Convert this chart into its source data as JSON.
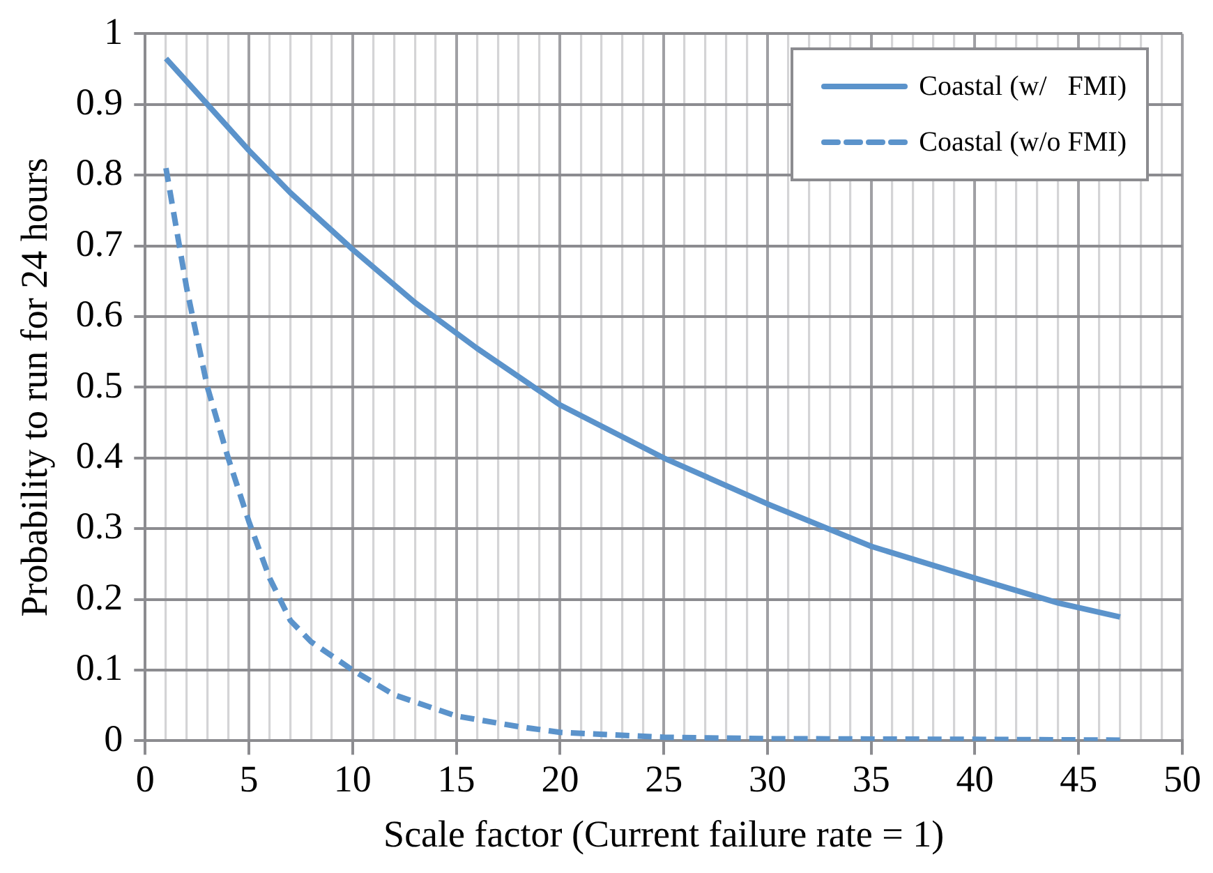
{
  "chart_data": {
    "type": "line",
    "xlabel": "Scale factor (Current failure rate = 1)",
    "ylabel": "Probability to run for 24 hours",
    "xlim": [
      0,
      50
    ],
    "ylim": [
      0,
      1
    ],
    "xticks": [
      0,
      {
        "value": 1,
        "label": null
      },
      {
        "value": 2,
        "label": null
      },
      {
        "value": 3,
        "label": null
      },
      {
        "value": 4,
        "label": null
      },
      5,
      {
        "value": 6,
        "label": null
      },
      {
        "value": 7,
        "label": null
      },
      {
        "value": 8,
        "label": null
      },
      {
        "value": 9,
        "label": null
      },
      10,
      {
        "value": 11,
        "label": null
      },
      {
        "value": 12,
        "label": null
      },
      {
        "value": 13,
        "label": null
      },
      {
        "value": 14,
        "label": null
      },
      15,
      {
        "value": 16,
        "label": null
      },
      {
        "value": 17,
        "label": null
      },
      {
        "value": 18,
        "label": null
      },
      {
        "value": 19,
        "label": null
      },
      20,
      {
        "value": 21,
        "label": null
      },
      {
        "value": 22,
        "label": null
      },
      {
        "value": 23,
        "label": null
      },
      {
        "value": 24,
        "label": null
      },
      25,
      {
        "value": 26,
        "label": null
      },
      {
        "value": 27,
        "label": null
      },
      {
        "value": 28,
        "label": null
      },
      {
        "value": 29,
        "label": null
      },
      30,
      {
        "value": 31,
        "label": null
      },
      {
        "value": 32,
        "label": null
      },
      {
        "value": 33,
        "label": null
      },
      {
        "value": 34,
        "label": null
      },
      35,
      {
        "value": 36,
        "label": null
      },
      {
        "value": 37,
        "label": null
      },
      {
        "value": 38,
        "label": null
      },
      {
        "value": 39,
        "label": null
      },
      40,
      {
        "value": 41,
        "label": null
      },
      {
        "value": 42,
        "label": null
      },
      {
        "value": 43,
        "label": null
      },
      {
        "value": 44,
        "label": null
      },
      45,
      {
        "value": 46,
        "label": null
      },
      {
        "value": 47,
        "label": null
      },
      {
        "value": 48,
        "label": null
      },
      {
        "value": 49,
        "label": null
      },
      50
    ],
    "yticks": [
      0,
      0.1,
      0.2,
      0.3,
      0.4,
      0.5,
      0.6,
      0.7,
      0.8,
      0.9,
      1
    ],
    "grid": true,
    "legend": "top right",
    "marker": "none",
    "series": [
      {
        "name": "Coastal (w/   FMI)",
        "color": "#5b93cb",
        "line_style": "solid",
        "x": [
          1,
          3,
          5,
          7,
          10,
          13,
          16,
          20,
          25,
          30,
          35,
          40,
          44,
          47
        ],
        "values": [
          0.965,
          0.9,
          0.835,
          0.775,
          0.695,
          0.62,
          0.555,
          0.475,
          0.4,
          0.335,
          0.275,
          0.23,
          0.195,
          0.175
        ]
      },
      {
        "name": "Coastal (w/o FMI)",
        "color": "#5b93cb",
        "line_style": "dashed",
        "x": [
          1,
          2,
          3,
          4,
          5,
          6,
          7,
          8,
          10,
          12,
          15,
          18,
          20,
          25,
          30,
          40,
          47
        ],
        "values": [
          0.81,
          0.64,
          0.5,
          0.4,
          0.31,
          0.23,
          0.17,
          0.14,
          0.1,
          0.065,
          0.035,
          0.02,
          0.012,
          0.005,
          0.003,
          0.002,
          0.001
        ]
      }
    ]
  }
}
